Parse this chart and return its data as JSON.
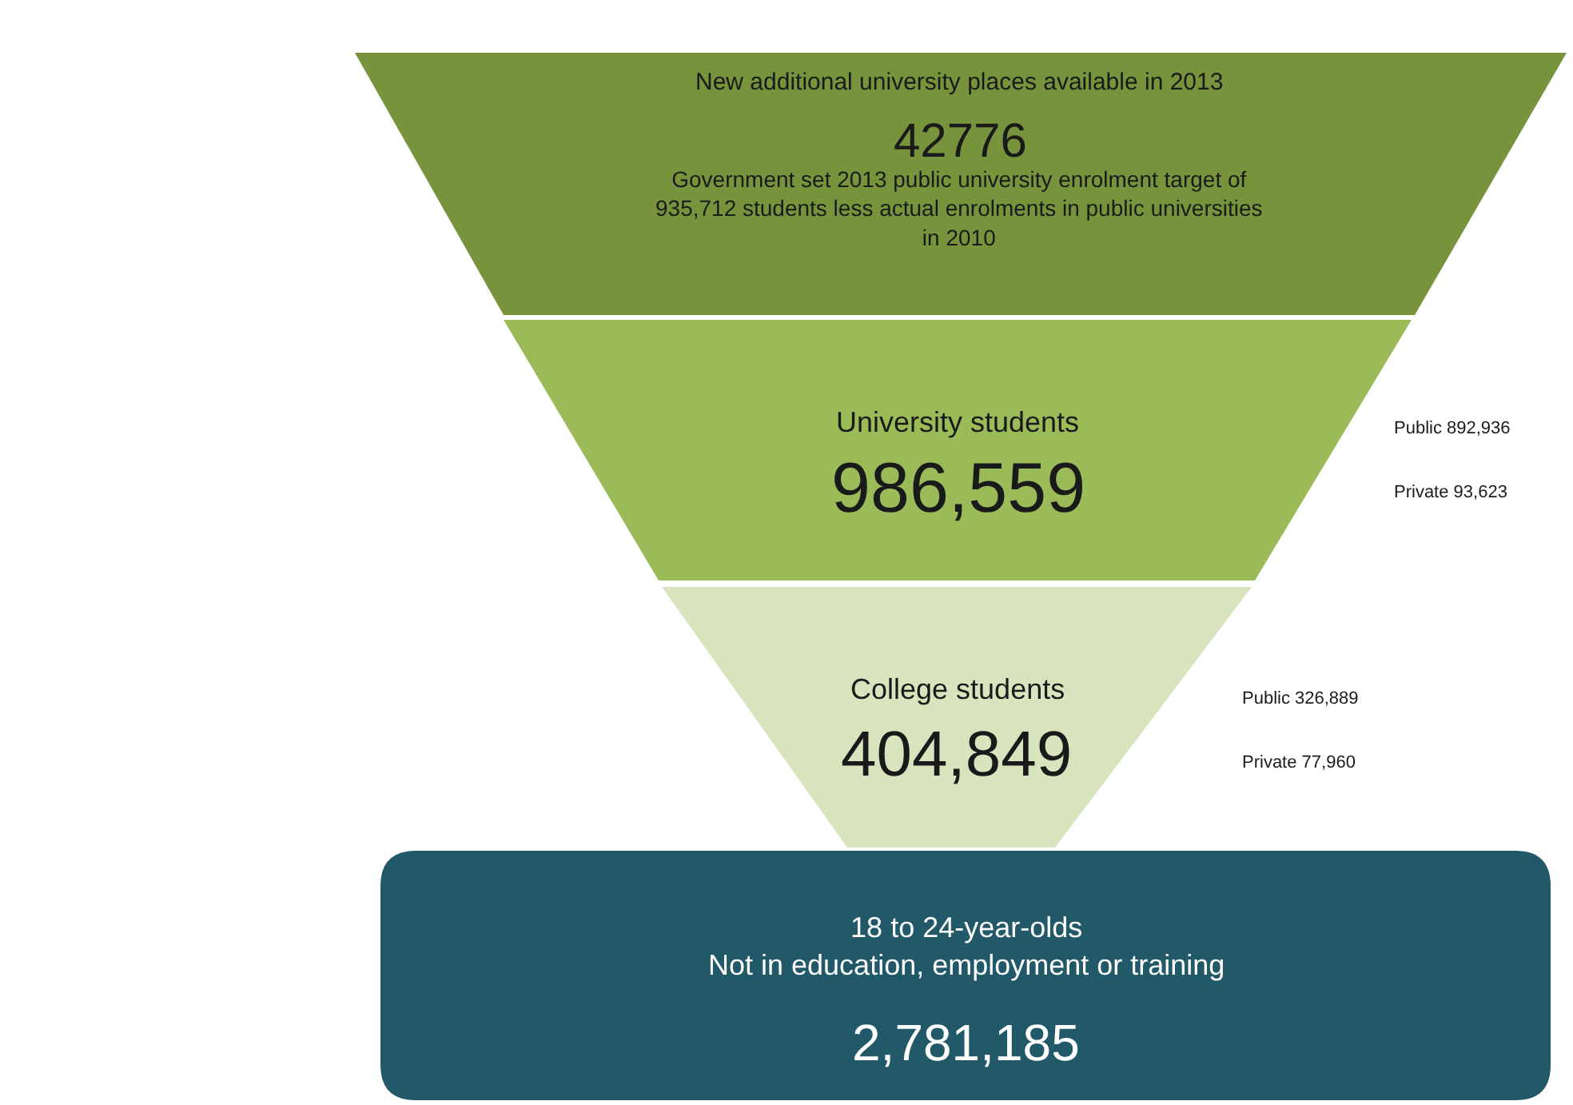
{
  "chart_data": {
    "type": "other",
    "categories": [
      "New additional university places available in 2013",
      "University students",
      "College students",
      "18 to 24-year-olds\nNot in education, employment or training"
    ],
    "values": [
      42776,
      986559,
      404849,
      2781185
    ],
    "value_labels": [
      "42776",
      "986,559",
      "404,849",
      "2,781,185"
    ],
    "colors": [
      "#77933c",
      "#9bbb59",
      "#d7e4bd",
      "#215968"
    ],
    "annotations": [
      "Government set 2013 public university enrolment target of\n935,712 students less actual enrolments in public universities\nin 2010",
      "Public 892,936",
      "Private 93,623",
      "Public 326,889",
      "Private 77,960"
    ]
  }
}
